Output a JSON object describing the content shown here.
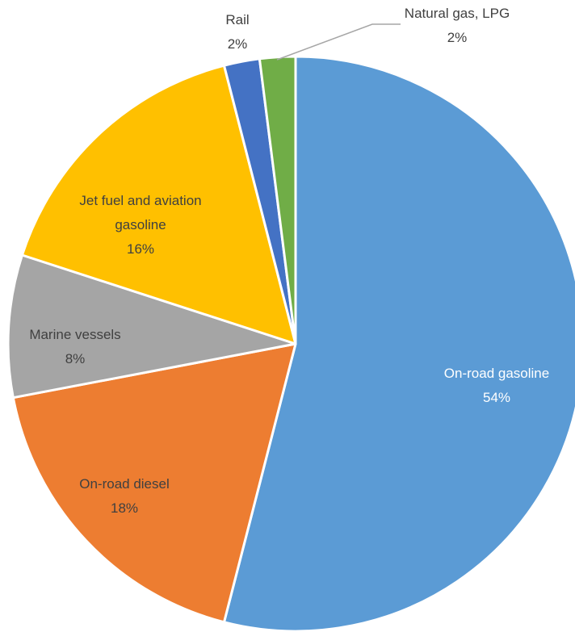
{
  "chart_data": {
    "type": "pie",
    "title": "",
    "slices": [
      {
        "label": "On-road gasoline",
        "value": 54,
        "value_label": "54%",
        "color": "#5b9bd5",
        "label_color": "#ffffff"
      },
      {
        "label": "On-road diesel",
        "value": 18,
        "value_label": "18%",
        "color": "#ed7d31",
        "label_color": "#404040"
      },
      {
        "label": "Marine vessels",
        "value": 8,
        "value_label": "8%",
        "color": "#a5a5a5",
        "label_color": "#404040"
      },
      {
        "label": "Jet fuel and aviation gasoline",
        "value": 16,
        "value_label": "16%",
        "color": "#ffc000",
        "label_color": "#404040"
      },
      {
        "label": "Rail",
        "value": 2,
        "value_label": "2%",
        "color": "#4472c4",
        "label_color": "#404040"
      },
      {
        "label": "Natural gas, LPG",
        "value": 2,
        "value_label": "2%",
        "color": "#70ad47",
        "label_color": "#404040"
      }
    ],
    "start_angle": "12 o'clock",
    "direction": "clockwise",
    "legend": "none",
    "colors": {
      "slice_border": "#ffffff",
      "leader_line": "#a6a6a6"
    }
  }
}
